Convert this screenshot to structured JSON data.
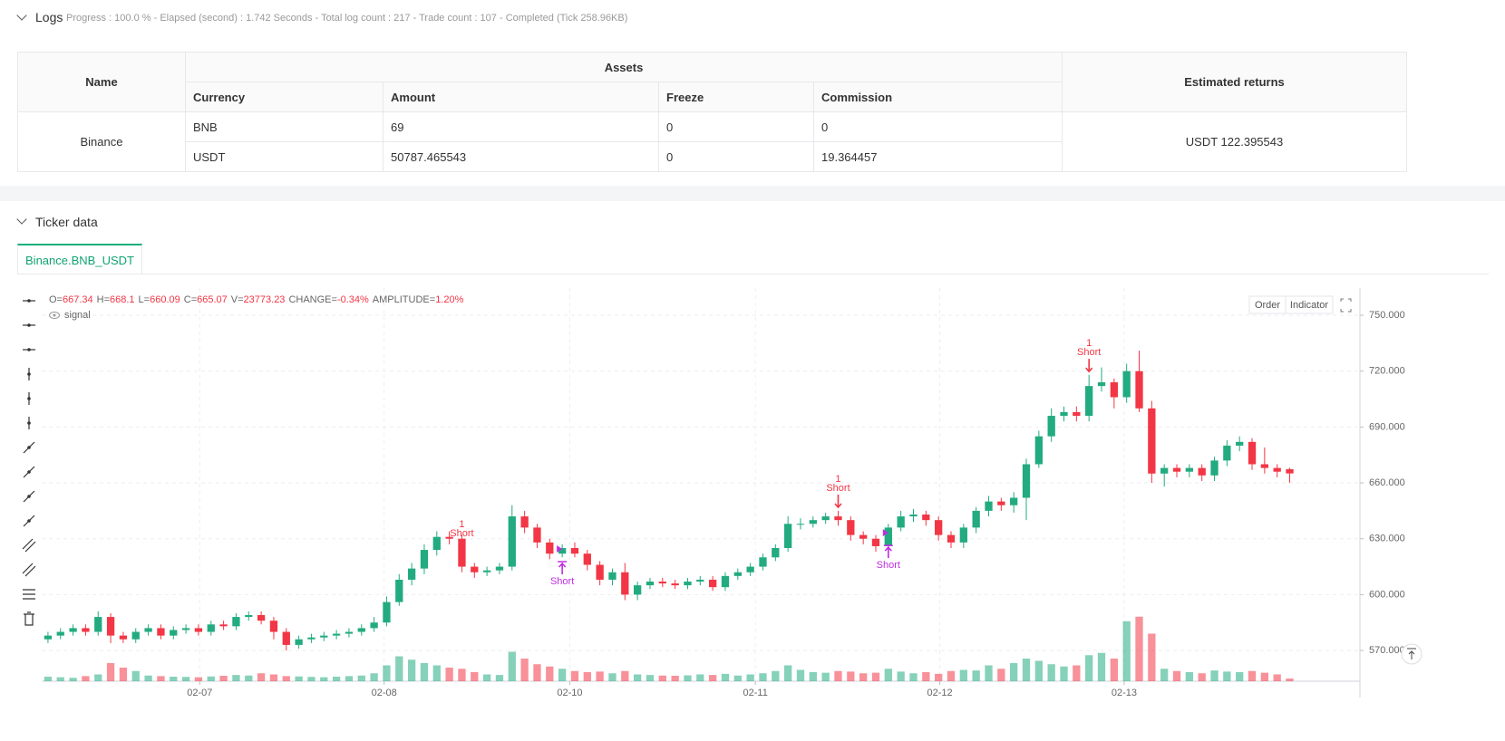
{
  "logs": {
    "title": "Logs",
    "status": "Progress : 100.0 % - Elapsed (second) : 1.742 Seconds - Total log count : 217 - Trade count : 107 - Completed (Tick 258.96KB)"
  },
  "table": {
    "headers": {
      "name": "Name",
      "assets": "Assets",
      "returns": "Estimated returns",
      "sub": [
        "Currency",
        "Amount",
        "Freeze",
        "Commission"
      ]
    },
    "exchange": "Binance",
    "rows": [
      [
        "BNB",
        "69",
        "0",
        "0"
      ],
      [
        "USDT",
        "50787.465543",
        "0",
        "19.364457"
      ]
    ],
    "returns": "USDT 122.395543"
  },
  "ticker": {
    "title": "Ticker data",
    "tab": "Binance.BNB_USDT"
  },
  "chart_data": {
    "type": "candlestick",
    "info": [
      {
        "label": "O=",
        "value": "667.34"
      },
      {
        "label": "H=",
        "value": "668.1"
      },
      {
        "label": "L=",
        "value": "660.09"
      },
      {
        "label": "C=",
        "value": "665.07"
      },
      {
        "label": "V=",
        "value": "23773.23"
      },
      {
        "label": "CHANGE=",
        "value": "-0.34%"
      },
      {
        "label": "AMPLITUDE=",
        "value": "1.20%"
      }
    ],
    "legend": "signal",
    "buttons": [
      "Order",
      "Indicator"
    ],
    "up_color": "#22ab80",
    "down_color": "#f23645",
    "xlim": [
      -0.5,
      104.6
    ],
    "xticks": [
      {
        "value": 12.1,
        "label": "02-07"
      },
      {
        "value": 26.8,
        "label": "02-08"
      },
      {
        "value": 41.6,
        "label": "02-10"
      },
      {
        "value": 56.4,
        "label": "02-11"
      },
      {
        "value": 71.1,
        "label": "02-12"
      },
      {
        "value": 85.8,
        "label": "02-13"
      }
    ],
    "ylim": [
      553.5,
      764.6
    ],
    "yticks": [
      {
        "value": 570,
        "label": "570.000"
      },
      {
        "value": 600,
        "label": "600.000"
      },
      {
        "value": 630,
        "label": "630.000"
      },
      {
        "value": 660,
        "label": "660.000"
      },
      {
        "value": 690,
        "label": "690.000"
      },
      {
        "value": 720,
        "label": "720.000"
      },
      {
        "value": 750,
        "label": "750.000"
      }
    ],
    "grid": true,
    "vlim": [
      0,
      800000
    ],
    "open": [
      576,
      578,
      580,
      582,
      580,
      588,
      578,
      576,
      580,
      582,
      578,
      581,
      582,
      580,
      584,
      583,
      588,
      589,
      586,
      580,
      573,
      576,
      577,
      578,
      579,
      580,
      582,
      585,
      596,
      608,
      614,
      624,
      631,
      630,
      615,
      612,
      613,
      615,
      642,
      636,
      628,
      622,
      625,
      622,
      616,
      608,
      612,
      600,
      605,
      607,
      606,
      605,
      607,
      608,
      604,
      610,
      612,
      615,
      620,
      625,
      638,
      638,
      640,
      642,
      640,
      632,
      630,
      626,
      636,
      642,
      643,
      640,
      632,
      628,
      636,
      645,
      650,
      648,
      652,
      670,
      685,
      696,
      698,
      696,
      712,
      714,
      706,
      720,
      700,
      665,
      668,
      666,
      668,
      664,
      672,
      680,
      682,
      670,
      668,
      667.34
    ],
    "high": [
      580,
      582,
      584,
      584,
      591,
      590,
      580,
      582,
      584,
      584,
      583,
      584,
      584,
      586,
      586,
      590,
      591,
      591,
      588,
      582,
      578,
      579,
      580,
      581,
      582,
      584,
      588,
      599,
      611,
      617,
      627,
      634,
      634,
      632,
      617,
      615,
      617,
      648,
      645,
      638,
      630,
      627,
      628,
      624,
      618,
      614,
      617,
      607,
      609,
      609,
      608,
      609,
      610,
      610,
      612,
      614,
      617,
      622,
      627,
      642,
      641,
      642,
      644,
      645,
      642,
      634,
      632,
      638,
      645,
      646,
      645,
      642,
      634,
      638,
      647,
      653,
      652,
      655,
      673,
      688,
      700,
      701,
      701,
      718,
      722,
      716,
      724,
      731,
      704,
      670,
      670,
      670,
      670,
      674,
      683,
      685,
      684,
      679,
      670,
      668.1
    ],
    "low": [
      574,
      576,
      578,
      578,
      578,
      574,
      574,
      574,
      578,
      576,
      576,
      579,
      578,
      578,
      581,
      581,
      586,
      584,
      576,
      570,
      571,
      574,
      575,
      576,
      577,
      578,
      580,
      583,
      594,
      605,
      611,
      621,
      627,
      612,
      609,
      610,
      611,
      613,
      633,
      625,
      619,
      620,
      620,
      613,
      605,
      605,
      597,
      597,
      603,
      604,
      603,
      603,
      605,
      602,
      602,
      608,
      610,
      613,
      618,
      623,
      635,
      636,
      638,
      637,
      629,
      627,
      623,
      624,
      634,
      639,
      637,
      629,
      625,
      625,
      633,
      642,
      645,
      644,
      640,
      668,
      682,
      693,
      693,
      693,
      709,
      700,
      703,
      698,
      660,
      658,
      663,
      663,
      661,
      661,
      669,
      677,
      667,
      665,
      663,
      660.09
    ],
    "close": [
      578,
      580,
      582,
      580,
      588,
      578,
      576,
      580,
      582,
      578,
      581,
      582,
      580,
      584,
      583,
      588,
      589,
      586,
      580,
      573,
      576,
      577,
      578,
      579,
      580,
      582,
      585,
      596,
      608,
      614,
      624,
      631,
      630,
      615,
      612,
      613,
      615,
      642,
      636,
      628,
      622,
      625,
      622,
      616,
      608,
      612,
      600,
      605,
      607,
      606,
      605,
      607,
      608,
      604,
      610,
      612,
      615,
      620,
      625,
      638,
      638,
      640,
      642,
      640,
      632,
      630,
      626,
      636,
      642,
      643,
      640,
      632,
      628,
      636,
      645,
      650,
      648,
      652,
      670,
      685,
      696,
      698,
      696,
      712,
      714,
      706,
      720,
      700,
      665,
      668,
      666,
      668,
      664,
      672,
      680,
      682,
      670,
      668,
      666,
      665.07
    ],
    "volume": [
      40000,
      35000,
      30000,
      45000,
      60000,
      160000,
      120000,
      90000,
      50000,
      45000,
      40000,
      38000,
      35000,
      42000,
      48000,
      55000,
      50000,
      70000,
      60000,
      45000,
      42000,
      38000,
      35000,
      40000,
      45000,
      50000,
      70000,
      140000,
      220000,
      190000,
      160000,
      140000,
      120000,
      110000,
      80000,
      60000,
      55000,
      260000,
      200000,
      150000,
      130000,
      110000,
      90000,
      80000,
      85000,
      70000,
      90000,
      60000,
      55000,
      50000,
      48000,
      52000,
      60000,
      55000,
      65000,
      50000,
      60000,
      70000,
      90000,
      140000,
      100000,
      80000,
      75000,
      90000,
      85000,
      70000,
      75000,
      110000,
      85000,
      70000,
      80000,
      65000,
      90000,
      100000,
      95000,
      140000,
      110000,
      160000,
      200000,
      180000,
      150000,
      130000,
      140000,
      230000,
      250000,
      200000,
      530000,
      570000,
      420000,
      110000,
      90000,
      80000,
      70000,
      95000,
      85000,
      80000,
      90000,
      75000,
      60000,
      23773.23
    ],
    "signals": [
      {
        "index": 33,
        "price": 622.5,
        "count": 1,
        "label": "Short",
        "color": "#f23645",
        "direction": "down"
      },
      {
        "index": 63,
        "price": 646.9,
        "count": 1,
        "label": "Short",
        "color": "#f23645",
        "direction": "down"
      },
      {
        "index": 83,
        "price": 719.8,
        "count": 1,
        "label": "Short",
        "color": "#f23645",
        "direction": "down"
      },
      {
        "index": 41,
        "price": 617.7,
        "label": "Short",
        "color": "#c02ee0",
        "direction": "up"
      },
      {
        "index": 67,
        "price": 626.4,
        "label": "Short",
        "color": "#c02ee0",
        "direction": "up"
      }
    ]
  }
}
